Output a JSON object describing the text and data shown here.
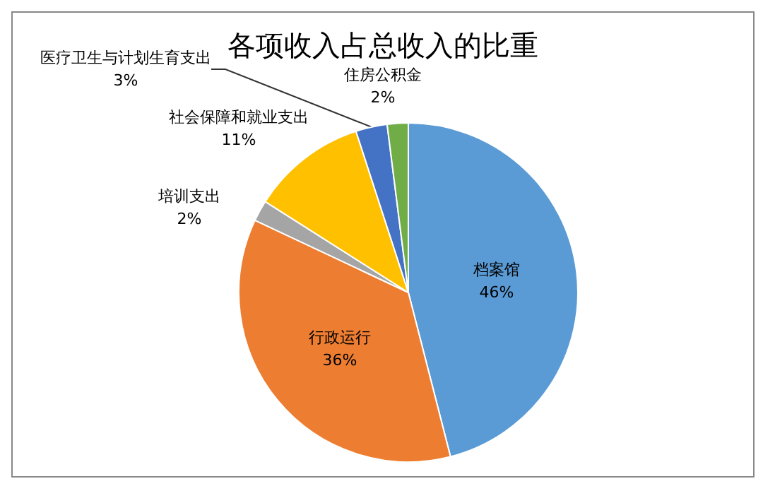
{
  "chart_data": {
    "type": "pie",
    "title": "各项收入占总收入的比重",
    "categories": [
      "档案馆",
      "行政运行",
      "培训支出",
      "社会保障和就业支出",
      "医疗卫生与计划生育支出",
      "住房公积金"
    ],
    "values": [
      46,
      36,
      2,
      11,
      3,
      2
    ],
    "colors": [
      "#5b9bd5",
      "#ed7d31",
      "#a5a5a5",
      "#ffc000",
      "#4472c4",
      "#70ad47"
    ],
    "value_labels": [
      "46%",
      "36%",
      "2%",
      "11%",
      "3%",
      "2%"
    ],
    "legend": false
  }
}
